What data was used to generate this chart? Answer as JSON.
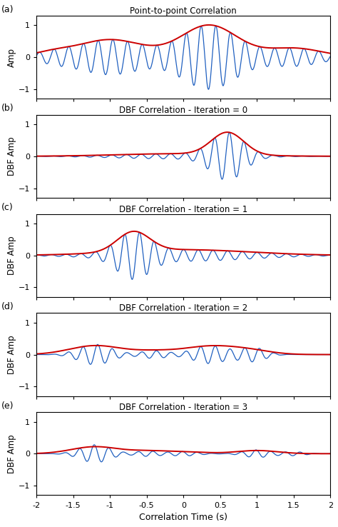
{
  "titles": [
    "Point-to-point Correlation",
    "DBF Correlation - Iteration = 0",
    "DBF Correlation - Iteration = 1",
    "DBF Correlation - Iteration = 2",
    "DBF Correlation - Iteration = 3"
  ],
  "panel_labels": [
    "(a)",
    "(b)",
    "(c)",
    "(d)",
    "(e)"
  ],
  "ylabels": [
    "Amp",
    "DBF Amp",
    "DBF Amp",
    "DBF Amp",
    "DBF Amp"
  ],
  "xlabel": "Correlation Time (s)",
  "xlim": [
    -2,
    2
  ],
  "ylim": [
    -1.3,
    1.3
  ],
  "yticks": [
    -1,
    0,
    1
  ],
  "xticks": [
    -2.0,
    -1.5,
    -1.0,
    -0.5,
    0.0,
    0.5,
    1.0,
    1.5,
    2.0
  ],
  "blue_color": "#2060c0",
  "red_color": "#cc0000",
  "figsize": [
    4.74,
    7.38
  ],
  "dpi": 100
}
